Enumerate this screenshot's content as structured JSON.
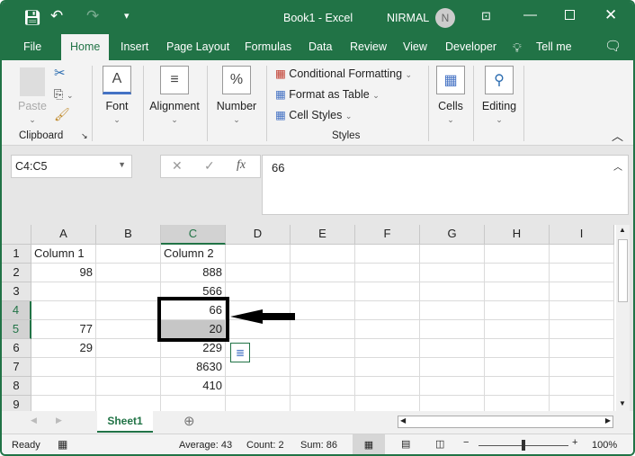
{
  "title_bar": {
    "title": "Book1  -  Excel",
    "user": "NIRMAL",
    "avatar_initial": "N"
  },
  "tabs": [
    "File",
    "Home",
    "Insert",
    "Page Layout",
    "Formulas",
    "Data",
    "Review",
    "View",
    "Developer",
    "Tell me"
  ],
  "active_tab": "Home",
  "ribbon": {
    "paste": "Paste",
    "clipboard": "Clipboard",
    "font": "Font",
    "alignment": "Alignment",
    "number": "Number",
    "conditional_formatting": "Conditional Formatting",
    "format_as_table": "Format as Table",
    "cell_styles": "Cell Styles",
    "styles": "Styles",
    "cells": "Cells",
    "editing": "Editing"
  },
  "formula_bar": {
    "name_box": "C4:C5",
    "fx": "fx",
    "value": "66"
  },
  "columns": [
    "A",
    "B",
    "C",
    "D",
    "E",
    "F",
    "G",
    "H",
    "I"
  ],
  "rows": [
    [
      "Column 1",
      "",
      "Column 2"
    ],
    [
      "98",
      "",
      "888"
    ],
    [
      "",
      "",
      "566"
    ],
    [
      "",
      "",
      "66"
    ],
    [
      "77",
      "",
      "20"
    ],
    [
      "29",
      "",
      "229"
    ],
    [
      "",
      "",
      "8630"
    ],
    [
      "",
      "",
      "410"
    ],
    [
      "",
      "",
      ""
    ]
  ],
  "selection": "C4:C5",
  "sheet_tabs": [
    "Sheet1"
  ],
  "status": {
    "ready": "Ready",
    "average": "Average: 43",
    "count": "Count: 2",
    "sum": "Sum: 86",
    "zoom": "100%"
  },
  "colors": {
    "accent": "#217346",
    "selection_fill": "#c6c6c6"
  }
}
